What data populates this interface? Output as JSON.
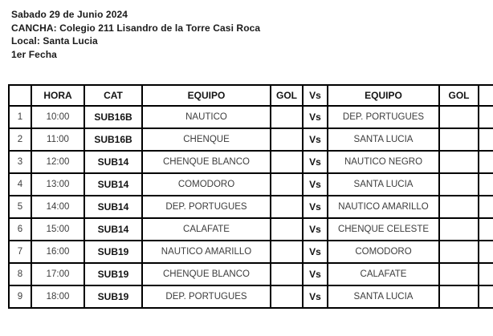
{
  "header": {
    "date_line": "Sabado 29 de Junio 2024",
    "venue_line": "CANCHA: Colegio 211 Lisandro de la Torre Casi Roca",
    "local_line": "Local: Santa Lucia",
    "round_line": "1er Fecha"
  },
  "table": {
    "columns": [
      "",
      "HORA",
      "CAT",
      "EQUIPO",
      "GOL",
      "Vs",
      "EQUIPO",
      "GOL",
      ""
    ],
    "rows": [
      {
        "num": "1",
        "hora": "10:00",
        "cat": "SUB16B",
        "equipo1": "NAUTICO",
        "gol1": "",
        "vs": "Vs",
        "equipo2": "DEP. PORTUGUES",
        "gol2": ""
      },
      {
        "num": "2",
        "hora": "11:00",
        "cat": "SUB16B",
        "equipo1": "CHENQUE",
        "gol1": "",
        "vs": "Vs",
        "equipo2": "SANTA LUCIA",
        "gol2": ""
      },
      {
        "num": "3",
        "hora": "12:00",
        "cat": "SUB14",
        "equipo1": "CHENQUE BLANCO",
        "gol1": "",
        "vs": "Vs",
        "equipo2": "NAUTICO NEGRO",
        "gol2": ""
      },
      {
        "num": "4",
        "hora": "13:00",
        "cat": "SUB14",
        "equipo1": "COMODORO",
        "gol1": "",
        "vs": "Vs",
        "equipo2": "SANTA LUCIA",
        "gol2": ""
      },
      {
        "num": "5",
        "hora": "14:00",
        "cat": "SUB14",
        "equipo1": "DEP. PORTUGUES",
        "gol1": "",
        "vs": "Vs",
        "equipo2": "NAUTICO AMARILLO",
        "gol2": ""
      },
      {
        "num": "6",
        "hora": "15:00",
        "cat": "SUB14",
        "equipo1": "CALAFATE",
        "gol1": "",
        "vs": "Vs",
        "equipo2": "CHENQUE CELESTE",
        "gol2": ""
      },
      {
        "num": "7",
        "hora": "16:00",
        "cat": "SUB19",
        "equipo1": "NAUTICO AMARILLO",
        "gol1": "",
        "vs": "Vs",
        "equipo2": "COMODORO",
        "gol2": ""
      },
      {
        "num": "8",
        "hora": "17:00",
        "cat": "SUB19",
        "equipo1": "CHENQUE BLANCO",
        "gol1": "",
        "vs": "Vs",
        "equipo2": "CALAFATE",
        "gol2": ""
      },
      {
        "num": "9",
        "hora": "18:00",
        "cat": "SUB19",
        "equipo1": "DEP. PORTUGUES",
        "gol1": "",
        "vs": "Vs",
        "equipo2": "SANTA LUCIA",
        "gol2": ""
      }
    ]
  },
  "colors": {
    "border": "#000000",
    "text_bold": "#141414",
    "text_regular": "#3d3d3d",
    "background": "#ffffff"
  }
}
